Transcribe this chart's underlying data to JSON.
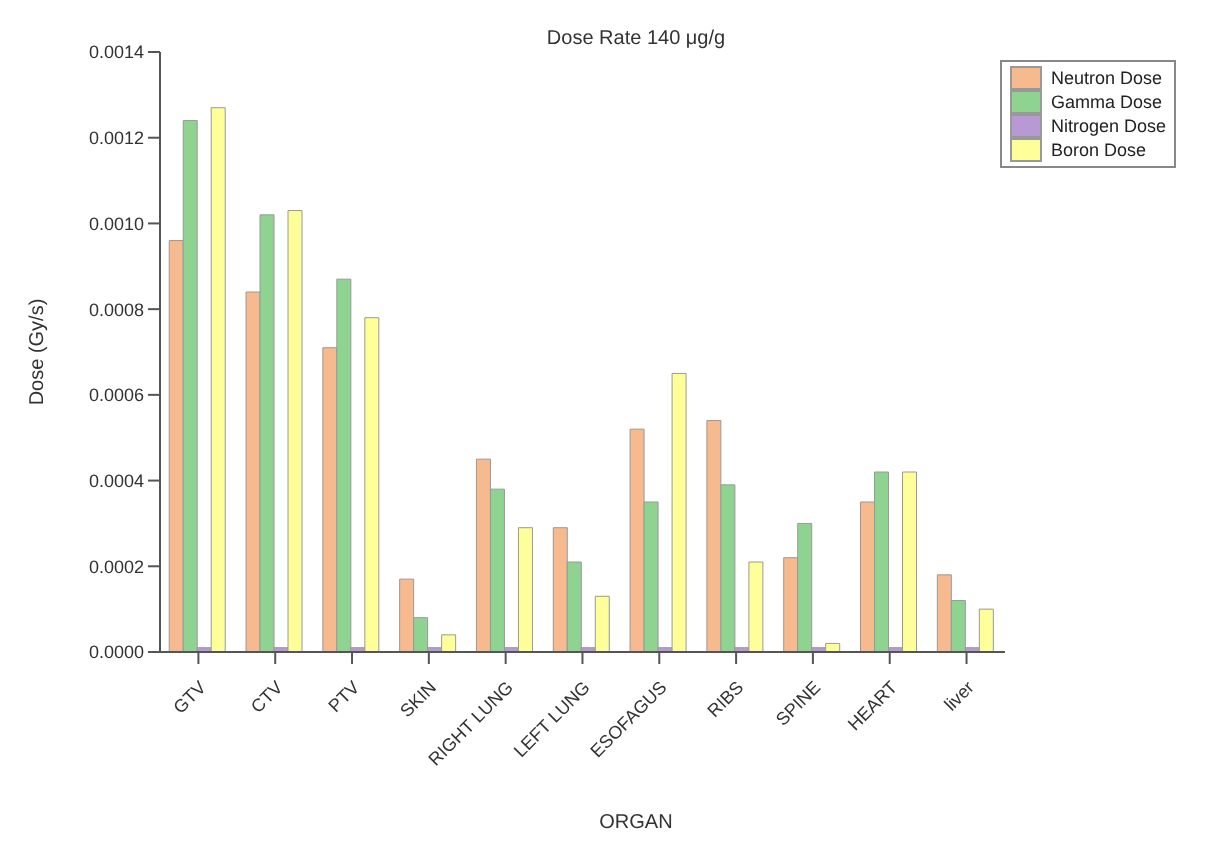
{
  "chart_data": {
    "type": "bar",
    "title": "Dose Rate 140 μg/g",
    "xlabel": "ORGAN",
    "ylabel": "Dose (Gy/s)",
    "categories": [
      "GTV",
      "CTV",
      "PTV",
      "SKIN",
      "RIGHT LUNG",
      "LEFT LUNG",
      "ESOFAGUS",
      "RIBS",
      "SPINE",
      "HEART",
      "liver"
    ],
    "series": [
      {
        "name": "Neutron Dose",
        "color": "#f7b98e",
        "values": [
          0.00096,
          0.00084,
          0.00071,
          0.00017,
          0.00045,
          0.00029,
          0.00052,
          0.00054,
          0.00022,
          0.00035,
          0.00018
        ]
      },
      {
        "name": "Gamma Dose",
        "color": "#8fd391",
        "values": [
          0.00124,
          0.00102,
          0.00087,
          8e-05,
          0.00038,
          0.00021,
          0.00035,
          0.00039,
          0.0003,
          0.00042,
          0.00012
        ]
      },
      {
        "name": "Nitrogen Dose",
        "color": "#b79ad4",
        "values": [
          1e-05,
          1e-05,
          1e-05,
          1e-05,
          1e-05,
          1e-05,
          1e-05,
          1e-05,
          1e-05,
          1e-05,
          1e-05
        ]
      },
      {
        "name": "Boron Dose",
        "color": "#ffff99",
        "values": [
          0.00127,
          0.00103,
          0.00078,
          4e-05,
          0.00029,
          0.00013,
          0.00065,
          0.00021,
          2e-05,
          0.00042,
          0.0001
        ]
      }
    ],
    "ylim": [
      0,
      0.0014
    ],
    "yticks": [
      {
        "value": 0,
        "label": "0.0000"
      },
      {
        "value": 0.0002,
        "label": "0.0002"
      },
      {
        "value": 0.0004,
        "label": "0.0004"
      },
      {
        "value": 0.0006,
        "label": "0.0006"
      },
      {
        "value": 0.0008,
        "label": "0.0008"
      },
      {
        "value": 0.001,
        "label": "0.0010"
      },
      {
        "value": 0.0012,
        "label": "0.0012"
      },
      {
        "value": 0.0014,
        "label": "0.0014"
      }
    ],
    "legend": "top right",
    "grid": false
  }
}
